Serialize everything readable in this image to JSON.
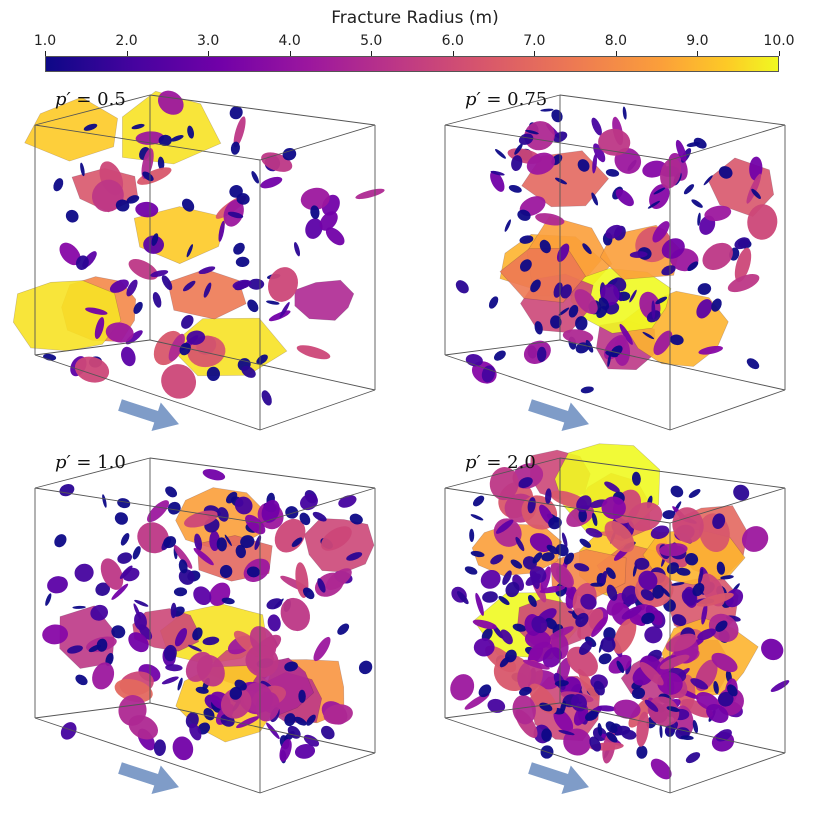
{
  "colorbar": {
    "title": "Fracture Radius (m)",
    "ticks": [
      "1.0",
      "2.0",
      "3.0",
      "4.0",
      "5.0",
      "6.0",
      "7.0",
      "8.0",
      "9.0",
      "10.0"
    ],
    "range": [
      1.0,
      10.0
    ],
    "colormap": "plasma"
  },
  "panels": [
    {
      "symbol": "p′",
      "equals": "=",
      "value": "0.5",
      "density": 0.5
    },
    {
      "symbol": "p′",
      "equals": "=",
      "value": "0.75",
      "density": 0.75
    },
    {
      "symbol": "p′",
      "equals": "=",
      "value": "1.0",
      "density": 1.0
    },
    {
      "symbol": "p′",
      "equals": "=",
      "value": "2.0",
      "density": 2.0
    }
  ],
  "flow_arrow_color": "#7f9cc8"
}
